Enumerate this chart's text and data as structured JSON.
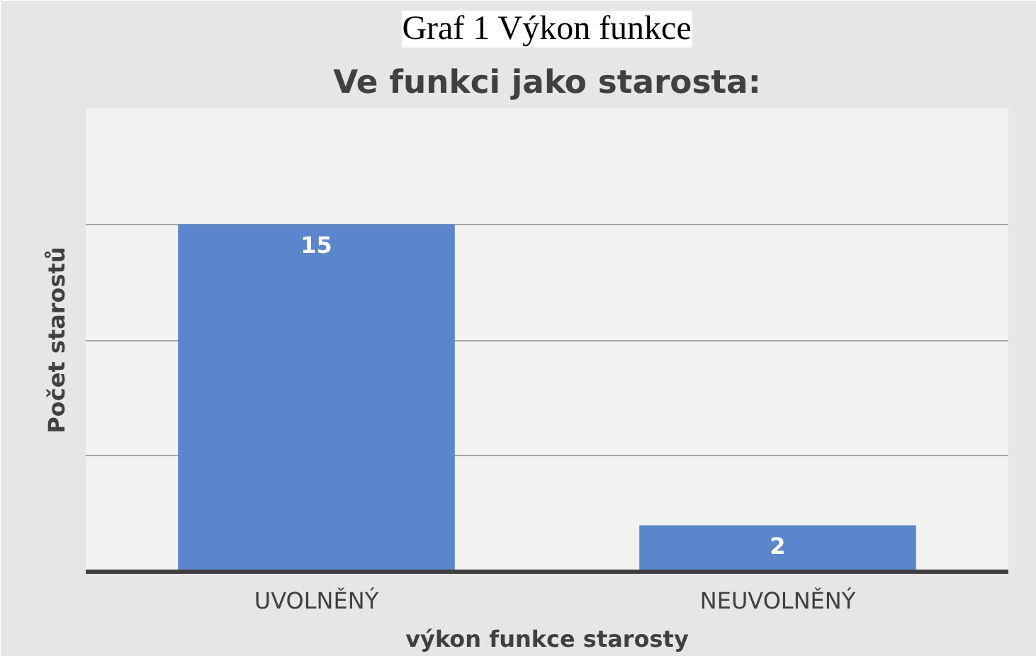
{
  "chart_data": {
    "type": "bar",
    "title": "Ve funkci jako starosta:",
    "annotations": [
      "Graf 1 Výkon funkce"
    ],
    "xlabel": "výkon funkce starosty",
    "ylabel": "Počet starostů",
    "categories": [
      "UVOLNĚNÝ",
      "NEUVOLNĚNÝ"
    ],
    "values": [
      15,
      2
    ],
    "color": "#5b86cc",
    "ylim": [
      0,
      20
    ],
    "yticks": [
      {
        "value": 0,
        "label": null
      },
      {
        "value": 5,
        "label": null
      },
      {
        "value": 10,
        "label": null
      },
      {
        "value": 15,
        "label": null
      },
      {
        "value": 20,
        "label": null
      }
    ],
    "tick_labels": "x",
    "grid": "y",
    "data_labels": true
  }
}
